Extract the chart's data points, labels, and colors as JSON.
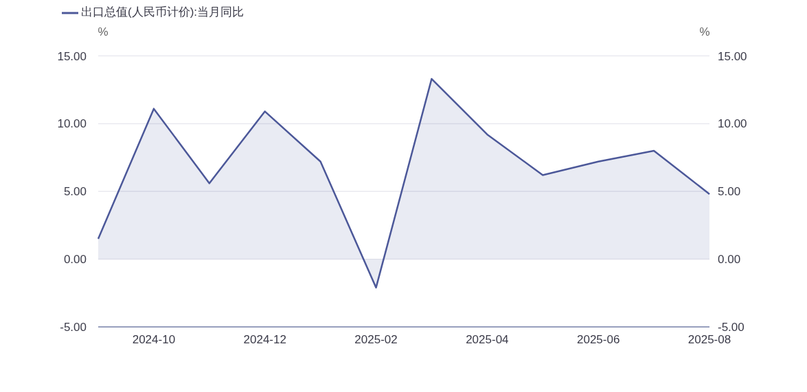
{
  "chart_data": {
    "type": "area",
    "categories": [
      null,
      "2024-10",
      null,
      "2024-12",
      null,
      "2025-02",
      null,
      "2025-04",
      null,
      "2025-06",
      null,
      "2025-08"
    ],
    "series": [
      {
        "name": "出口总值(人民币计价):当月同比",
        "color": "#4c5899",
        "values": [
          1.5,
          11.1,
          5.6,
          10.9,
          7.2,
          -2.1,
          13.3,
          9.2,
          6.2,
          7.2,
          8.0,
          4.8
        ]
      }
    ],
    "ylabel": "%",
    "y2label": "%",
    "ylim": [
      -5,
      15
    ],
    "yticks": [
      {
        "value": -5,
        "label": "-5.00"
      },
      {
        "value": 0,
        "label": "0.00"
      },
      {
        "value": 5,
        "label": "5.00"
      },
      {
        "value": 10,
        "label": "10.00"
      },
      {
        "value": 15,
        "label": "15.00"
      }
    ],
    "y2lim": [
      -5,
      15
    ],
    "y2ticks": [
      {
        "value": -5,
        "label": "-5.00"
      },
      {
        "value": 0,
        "label": "0.00"
      },
      {
        "value": 5,
        "label": "5.00"
      },
      {
        "value": 10,
        "label": "10.00"
      },
      {
        "value": 15,
        "label": "15.00"
      }
    ],
    "grid": "y",
    "legend": "top left"
  }
}
